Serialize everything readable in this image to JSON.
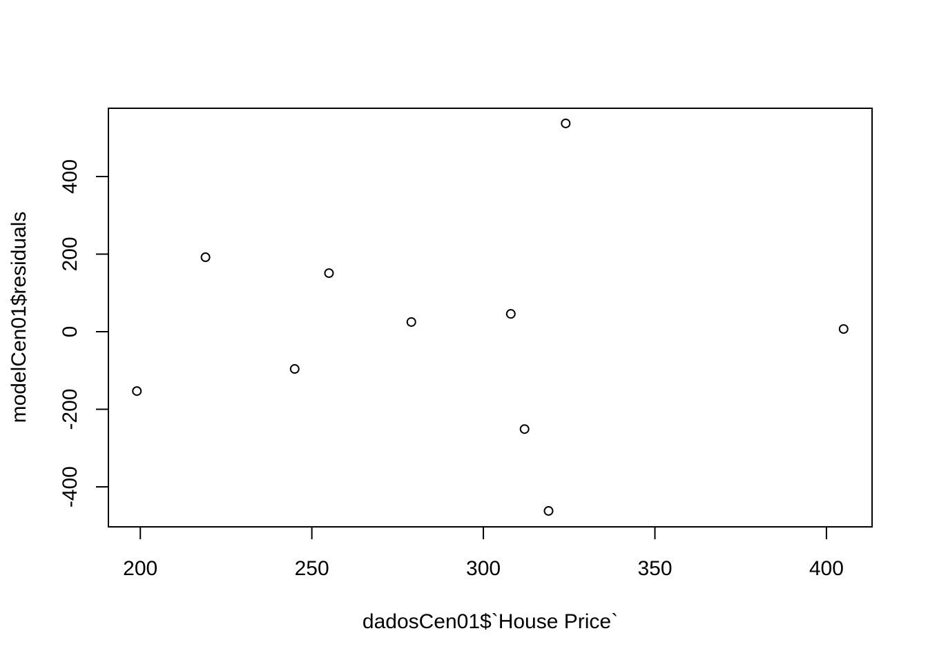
{
  "chart_data": {
    "type": "scatter",
    "title": "",
    "xlabel": "dadosCen01$`House Price`",
    "ylabel": "modelCen01$residuals",
    "xlim": [
      190.7,
      413.3
    ],
    "ylim": [
      -503,
      576
    ],
    "xticks": [
      200,
      250,
      300,
      350,
      400
    ],
    "yticks": [
      -400,
      -200,
      0,
      200,
      400
    ],
    "grid": false,
    "marker": "open-circle",
    "color": "#000000",
    "points": [
      {
        "x": 199,
        "y": -153
      },
      {
        "x": 219,
        "y": 192
      },
      {
        "x": 245,
        "y": -96
      },
      {
        "x": 255,
        "y": 151
      },
      {
        "x": 279,
        "y": 25
      },
      {
        "x": 308,
        "y": 46
      },
      {
        "x": 312,
        "y": -251
      },
      {
        "x": 319,
        "y": -462
      },
      {
        "x": 324,
        "y": 537
      },
      {
        "x": 405,
        "y": 7
      }
    ]
  }
}
